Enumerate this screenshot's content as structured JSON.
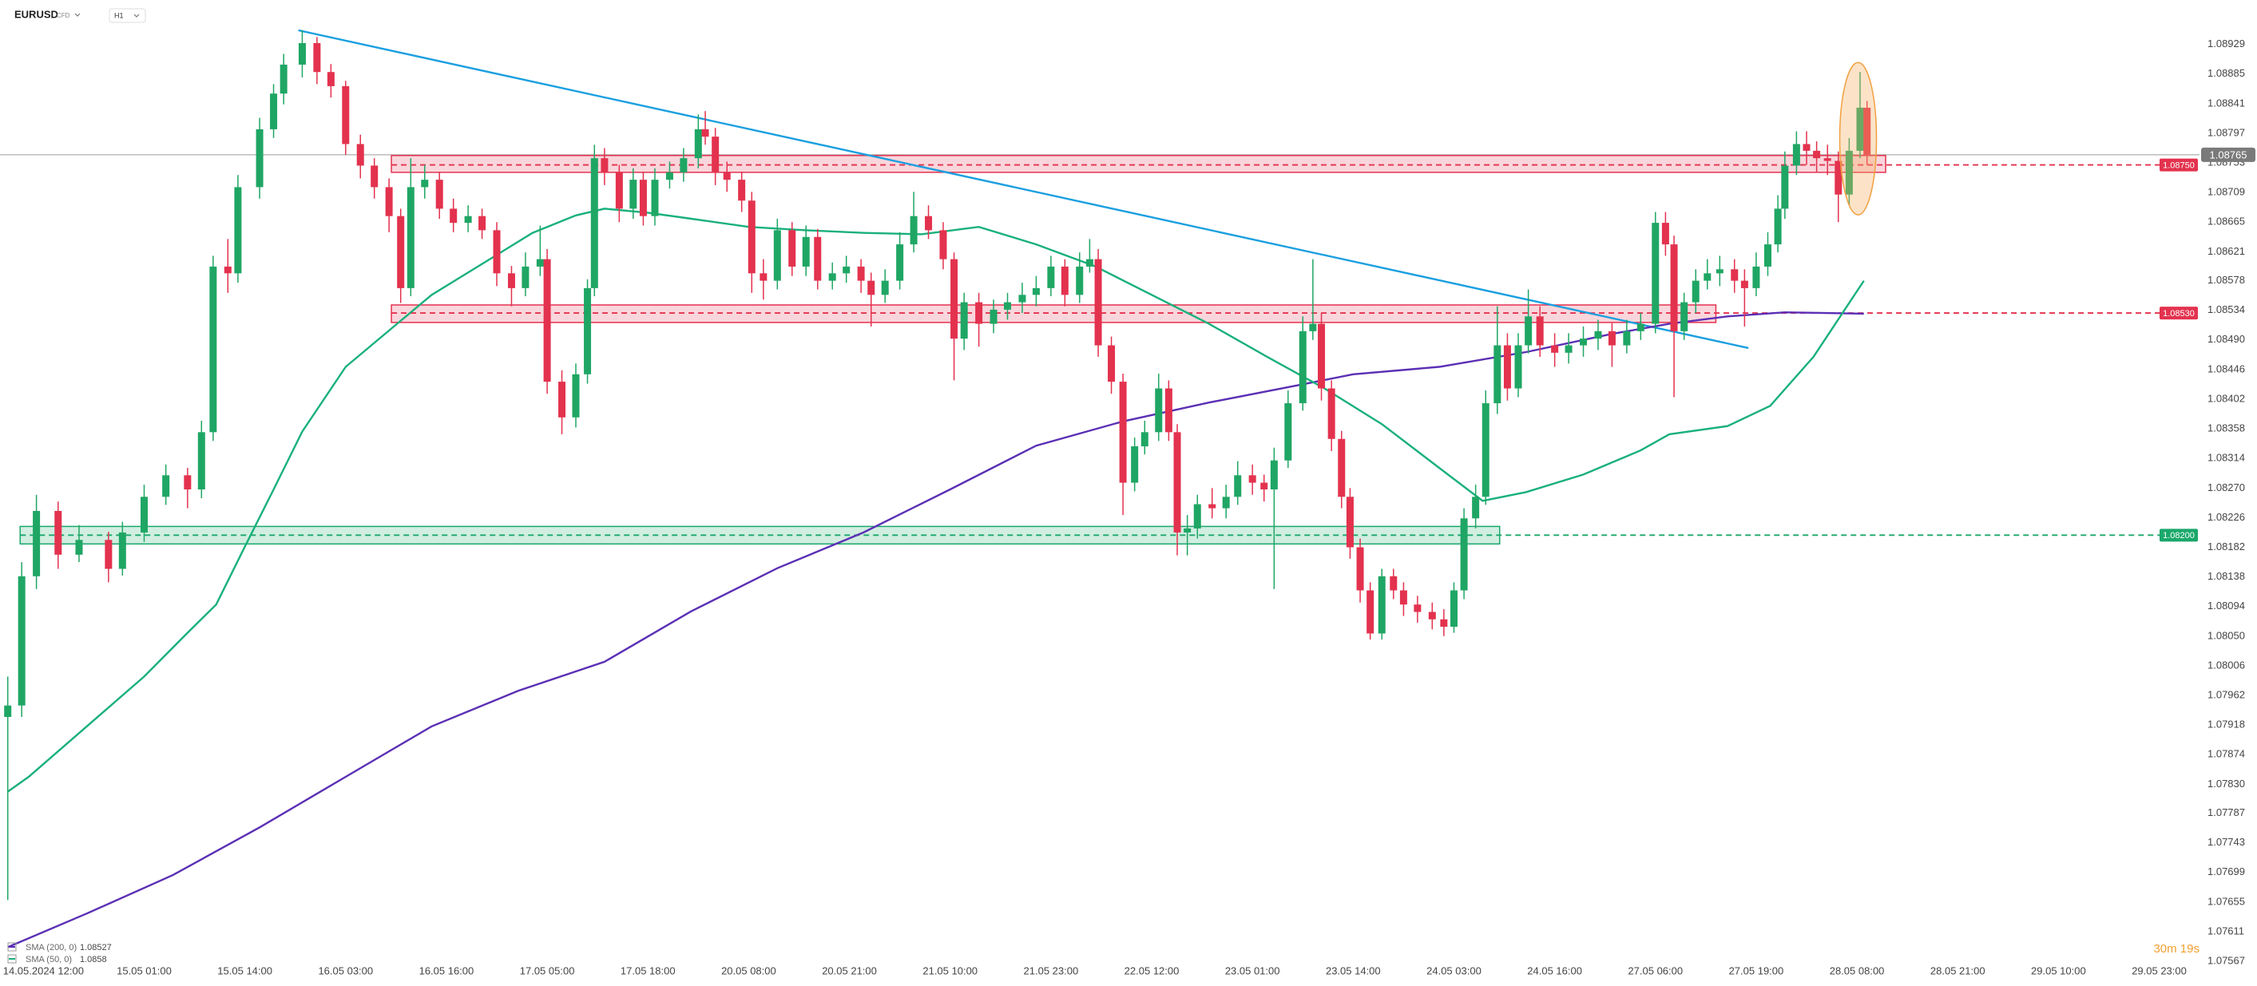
{
  "chart_data": {
    "type": "candlestick",
    "symbol": "EURUSD",
    "instrument_type": "CFD",
    "timeframe": "H1",
    "countdown": "30m 19s",
    "up_color": "#1fa664",
    "down_color": "#e3324e",
    "xlim": [
      -5.6,
      278.2
    ],
    "ylim": [
      1.07541,
      1.08995
    ],
    "yticks": [
      1.08929,
      1.08885,
      1.08841,
      1.08797,
      1.08753,
      1.08709,
      1.08665,
      1.08621,
      1.08578,
      1.08534,
      {
        "value": 1.0849,
        "label": "1.08490"
      },
      1.08446,
      1.08402,
      1.08358,
      1.08314,
      {
        "value": 1.0827,
        "label": "1.08270"
      },
      1.08226,
      1.08182,
      1.08138,
      1.08094,
      {
        "value": 1.0805,
        "label": "1.08050"
      },
      1.08006,
      1.07962,
      1.07918,
      1.07874,
      {
        "value": 1.0783,
        "label": "1.07830"
      },
      1.07787,
      1.07743,
      1.07699,
      1.07655,
      1.07611,
      1.07567
    ],
    "xticks": [
      {
        "value": 0,
        "label": "14.05.2024 12:00"
      },
      {
        "value": 13,
        "label": "15.05 01:00"
      },
      {
        "value": 26,
        "label": "15.05 14:00"
      },
      {
        "value": 39,
        "label": "16.05 03:00"
      },
      {
        "value": 52,
        "label": "16.05 16:00"
      },
      {
        "value": 65,
        "label": "17.05 05:00"
      },
      {
        "value": 78,
        "label": "17.05 18:00"
      },
      {
        "value": 91,
        "label": "20.05 08:00"
      },
      {
        "value": 104,
        "label": "20.05 21:00"
      },
      {
        "value": 117,
        "label": "21.05 10:00"
      },
      {
        "value": 130,
        "label": "21.05 23:00"
      },
      {
        "value": 143,
        "label": "22.05 12:00"
      },
      {
        "value": 156,
        "label": "23.05 01:00"
      },
      {
        "value": 169,
        "label": "23.05 14:00"
      },
      {
        "value": 182,
        "label": "24.05 03:00"
      },
      {
        "value": 195,
        "label": "24.05 16:00"
      },
      {
        "value": 208,
        "label": "27.05 06:00"
      },
      {
        "value": 221,
        "label": "27.05 19:00"
      },
      {
        "value": 234,
        "label": "28.05 08:00"
      },
      {
        "value": 247,
        "label": "28.05 21:00"
      },
      {
        "value": 260,
        "label": "29.05 10:00"
      },
      {
        "value": 273,
        "label": "29.05 23:00"
      }
    ],
    "x": [
      -4.6,
      -2.8,
      -0.9,
      1.9,
      4.6,
      8.4,
      10.2,
      13.0,
      15.8,
      18.6,
      20.4,
      21.9,
      23.8,
      25.1,
      27.9,
      29.7,
      31.0,
      33.4,
      35.3,
      37.1,
      39.0,
      40.9,
      42.7,
      44.6,
      46.1,
      47.4,
      49.2,
      51.1,
      52.9,
      54.8,
      56.6,
      58.5,
      60.4,
      62.2,
      64.1,
      65.0,
      66.9,
      68.7,
      70.2,
      71.1,
      72.4,
      74.3,
      76.1,
      77.4,
      78.9,
      80.8,
      82.6,
      84.5,
      85.4,
      86.7,
      88.2,
      90.1,
      91.4,
      92.9,
      94.7,
      96.6,
      98.4,
      99.9,
      101.8,
      103.6,
      105.5,
      106.8,
      108.6,
      110.5,
      112.3,
      114.2,
      116.1,
      117.5,
      118.8,
      120.7,
      122.6,
      124.4,
      126.3,
      128.1,
      130.0,
      131.8,
      133.7,
      135.0,
      136.1,
      137.8,
      139.3,
      140.8,
      142.1,
      143.9,
      145.2,
      146.3,
      147.6,
      148.9,
      150.8,
      152.6,
      154.1,
      156.0,
      157.5,
      158.8,
      160.6,
      162.5,
      163.8,
      164.9,
      166.2,
      167.5,
      168.6,
      169.9,
      171.2,
      172.7,
      174.2,
      175.5,
      177.3,
      179.2,
      180.7,
      182.0,
      183.3,
      184.8,
      186.1,
      187.6,
      188.9,
      190.3,
      191.6,
      193.1,
      195.0,
      196.8,
      198.7,
      200.6,
      202.4,
      204.3,
      206.1,
      208.0,
      209.3,
      210.4,
      211.7,
      213.2,
      214.7,
      216.3,
      218.2,
      219.5,
      221.0,
      222.5,
      223.8,
      224.7,
      226.2,
      227.5,
      228.8,
      230.2,
      231.6,
      233.0,
      234.4,
      235.3
    ],
    "open": [
      1.0793,
      1.07947,
      1.08139,
      1.08236,
      1.08171,
      1.08193,
      1.0815,
      1.08204,
      1.08257,
      1.08289,
      1.08268,
      1.08353,
      1.08599,
      1.08589,
      1.08717,
      1.08803,
      1.08856,
      1.08899,
      1.08931,
      1.08888,
      1.08867,
      1.08781,
      1.08749,
      1.08717,
      1.08674,
      1.08567,
      1.08717,
      1.08728,
      1.08685,
      1.08664,
      1.08674,
      1.08653,
      1.08589,
      1.08567,
      1.08599,
      1.0861,
      1.08428,
      1.08375,
      1.08439,
      1.08567,
      1.0876,
      1.08739,
      1.08685,
      1.08728,
      1.08674,
      1.08728,
      1.08739,
      1.0876,
      1.08803,
      1.08792,
      1.08739,
      1.08728,
      1.08697,
      1.08589,
      1.08578,
      1.08653,
      1.08599,
      1.08643,
      1.08578,
      1.08589,
      1.08599,
      1.08578,
      1.08557,
      1.08578,
      1.08632,
      1.08674,
      1.08653,
      1.0861,
      1.08492,
      1.08546,
      1.08514,
      1.08535,
      1.08546,
      1.08557,
      1.08567,
      1.08599,
      1.08557,
      1.08599,
      1.0861,
      1.08482,
      1.08428,
      1.08278,
      1.08332,
      1.08353,
      1.08418,
      1.08353,
      1.08204,
      1.0821,
      1.08246,
      1.0824,
      1.08257,
      1.08289,
      1.08278,
      1.08268,
      1.08311,
      1.08396,
      1.08503,
      1.08514,
      1.08418,
      1.08343,
      1.08257,
      1.08182,
      1.08118,
      1.08054,
      1.08139,
      1.08118,
      1.08097,
      1.08086,
      1.08075,
      1.08064,
      1.08118,
      1.08225,
      1.08257,
      1.08396,
      1.08482,
      1.08418,
      1.08482,
      1.08525,
      1.08482,
      1.08471,
      1.08482,
      1.08492,
      1.08503,
      1.08482,
      1.08503,
      1.08514,
      1.08664,
      1.08632,
      1.08503,
      1.08546,
      1.08578,
      1.08589,
      1.08595,
      1.08578,
      1.08567,
      1.08599,
      1.08632,
      1.08685,
      1.08749,
      1.08781,
      1.08771,
      1.0876,
      1.08756,
      1.08706,
      1.08771,
      1.08835
    ],
    "high": [
      1.0799,
      1.0816,
      1.0826,
      1.0825,
      1.08215,
      1.08205,
      1.0822,
      1.08275,
      1.08305,
      1.083,
      1.0837,
      1.08615,
      1.0864,
      1.08735,
      1.0882,
      1.0887,
      1.08915,
      1.0895,
      1.0894,
      1.089,
      1.08875,
      1.08795,
      1.0876,
      1.0873,
      1.08685,
      1.0876,
      1.0875,
      1.0874,
      1.087,
      1.0869,
      1.08685,
      1.08665,
      1.086,
      1.0862,
      1.0866,
      1.08625,
      1.08445,
      1.08455,
      1.0858,
      1.0878,
      1.08775,
      1.0875,
      1.08745,
      1.0874,
      1.08745,
      1.08755,
      1.08775,
      1.08825,
      1.0883,
      1.08805,
      1.08755,
      1.0874,
      1.0871,
      1.0861,
      1.0867,
      1.08665,
      1.0866,
      1.08655,
      1.08605,
      1.08615,
      1.0861,
      1.0859,
      1.08595,
      1.0865,
      1.0871,
      1.0869,
      1.08665,
      1.0862,
      1.0856,
      1.0856,
      1.0855,
      1.0856,
      1.08575,
      1.08585,
      1.08615,
      1.0861,
      1.0862,
      1.0864,
      1.08625,
      1.08495,
      1.0844,
      1.08345,
      1.0837,
      1.0844,
      1.0843,
      1.08365,
      1.0823,
      1.0826,
      1.0827,
      1.08275,
      1.0831,
      1.08305,
      1.0829,
      1.0833,
      1.08415,
      1.08525,
      1.0861,
      1.0853,
      1.0843,
      1.08355,
      1.0827,
      1.08195,
      1.0813,
      1.0815,
      1.0815,
      1.0813,
      1.0811,
      1.081,
      1.0809,
      1.0813,
      1.0824,
      1.08275,
      1.08415,
      1.0854,
      1.085,
      1.085,
      1.08565,
      1.0854,
      1.085,
      1.085,
      1.0851,
      1.0852,
      1.08515,
      1.0852,
      1.0853,
      1.0868,
      1.0868,
      1.08645,
      1.0856,
      1.08595,
      1.0861,
      1.08615,
      1.0861,
      1.08595,
      1.0862,
      1.0865,
      1.08705,
      1.0877,
      1.088,
      1.088,
      1.08785,
      1.0878,
      1.0877,
      1.0879,
      1.08888,
      1.08845
    ],
    "low": [
      1.07658,
      1.0793,
      1.0812,
      1.0815,
      1.0816,
      1.0813,
      1.0814,
      1.0819,
      1.08245,
      1.0824,
      1.08255,
      1.0834,
      1.0856,
      1.08575,
      1.087,
      1.0879,
      1.0884,
      1.0888,
      1.0887,
      1.0885,
      1.08765,
      1.0873,
      1.087,
      1.0865,
      1.08545,
      1.08555,
      1.087,
      1.0867,
      1.0865,
      1.0865,
      1.0864,
      1.0857,
      1.0854,
      1.08555,
      1.08585,
      1.0841,
      1.0835,
      1.0836,
      1.08425,
      1.08555,
      1.0872,
      1.08665,
      1.0867,
      1.0866,
      1.0866,
      1.08715,
      1.08725,
      1.08745,
      1.0878,
      1.0872,
      1.0871,
      1.0868,
      1.0856,
      1.0855,
      1.08565,
      1.08585,
      1.08585,
      1.08565,
      1.08565,
      1.08575,
      1.0856,
      1.0851,
      1.08545,
      1.08565,
      1.0862,
      1.0864,
      1.08595,
      1.0843,
      1.08475,
      1.0848,
      1.085,
      1.0852,
      1.0853,
      1.0854,
      1.08555,
      1.0854,
      1.08545,
      1.0859,
      1.08465,
      1.0841,
      1.0823,
      1.08265,
      1.0832,
      1.0834,
      1.0834,
      1.0817,
      1.0817,
      1.08195,
      1.08225,
      1.08225,
      1.08245,
      1.0826,
      1.0825,
      1.0812,
      1.083,
      1.08385,
      1.0849,
      1.084,
      1.08325,
      1.0824,
      1.08165,
      1.081,
      1.08045,
      1.08045,
      1.08105,
      1.0808,
      1.0807,
      1.0806,
      1.0805,
      1.08055,
      1.08105,
      1.0821,
      1.08245,
      1.0838,
      1.084,
      1.08405,
      1.0847,
      1.08465,
      1.0845,
      1.08455,
      1.08465,
      1.08475,
      1.0845,
      1.0847,
      1.0849,
      1.085,
      1.08615,
      1.08405,
      1.0849,
      1.0853,
      1.08565,
      1.0857,
      1.0856,
      1.0851,
      1.08555,
      1.08585,
      1.0862,
      1.0867,
      1.08735,
      1.0875,
      1.0874,
      1.08735,
      1.08665,
      1.0869,
      1.0876,
      1.0875
    ],
    "close": [
      1.07947,
      1.08139,
      1.08236,
      1.08171,
      1.08193,
      1.0815,
      1.08204,
      1.08257,
      1.08289,
      1.08268,
      1.08353,
      1.08599,
      1.08589,
      1.08717,
      1.08803,
      1.08856,
      1.08899,
      1.08931,
      1.08888,
      1.08867,
      1.08781,
      1.08749,
      1.08717,
      1.08674,
      1.08567,
      1.08717,
      1.08728,
      1.08685,
      1.08664,
      1.08674,
      1.08653,
      1.08589,
      1.08567,
      1.08599,
      1.0861,
      1.08428,
      1.08375,
      1.08439,
      1.08567,
      1.0876,
      1.08739,
      1.08685,
      1.08728,
      1.08674,
      1.08728,
      1.08739,
      1.0876,
      1.08803,
      1.08792,
      1.08739,
      1.08728,
      1.08697,
      1.08589,
      1.08578,
      1.08653,
      1.08599,
      1.08643,
      1.08578,
      1.08589,
      1.08599,
      1.08578,
      1.08557,
      1.08578,
      1.08632,
      1.08674,
      1.08653,
      1.0861,
      1.08492,
      1.08546,
      1.08514,
      1.08535,
      1.08546,
      1.08557,
      1.08567,
      1.08599,
      1.08557,
      1.08599,
      1.0861,
      1.08482,
      1.08428,
      1.08278,
      1.08332,
      1.08353,
      1.08418,
      1.08353,
      1.08204,
      1.0821,
      1.08246,
      1.0824,
      1.08257,
      1.08289,
      1.08278,
      1.08268,
      1.08311,
      1.08396,
      1.08503,
      1.08514,
      1.08418,
      1.08343,
      1.08257,
      1.08182,
      1.08118,
      1.08054,
      1.08139,
      1.08118,
      1.08097,
      1.08086,
      1.08075,
      1.08064,
      1.08118,
      1.08225,
      1.08257,
      1.08396,
      1.08482,
      1.08418,
      1.08482,
      1.08525,
      1.08482,
      1.08471,
      1.08482,
      1.08492,
      1.08503,
      1.08482,
      1.08503,
      1.08514,
      1.08664,
      1.08632,
      1.08503,
      1.08546,
      1.08578,
      1.08589,
      1.08595,
      1.08578,
      1.08567,
      1.08599,
      1.08632,
      1.08685,
      1.08749,
      1.08781,
      1.08771,
      1.0876,
      1.08756,
      1.08706,
      1.08771,
      1.08835,
      1.08765
    ],
    "last_price": 1.08765,
    "last_price_color": "#7a7a7a",
    "indicators": [
      {
        "name": "SMA (200, 0)",
        "last": 1.08527,
        "color": "#5b2fb5",
        "x": [
          -4.6,
          5.6,
          16.7,
          27.9,
          39.0,
          50.1,
          61.3,
          72.4,
          83.6,
          94.7,
          105.8,
          117.0,
          128.1,
          139.3,
          150.4,
          161.6,
          169.0,
          180.1,
          191.3,
          202.4,
          209.8,
          217.3,
          224.7,
          234.9
        ],
        "values": [
          1.07588,
          1.07638,
          1.07695,
          1.07766,
          1.07841,
          1.07916,
          1.07969,
          1.08012,
          1.08087,
          1.08151,
          1.08204,
          1.08268,
          1.08333,
          1.08369,
          1.08397,
          1.08422,
          1.08439,
          1.0845,
          1.08472,
          1.08499,
          1.08514,
          1.08525,
          1.08531,
          1.08529
        ]
      },
      {
        "name": "SMA (50, 0)",
        "last": 1.0858,
        "color": "#19b07b",
        "x": [
          -4.6,
          -1.9,
          5.6,
          13.0,
          18.6,
          22.3,
          26.0,
          29.7,
          33.4,
          39.0,
          44.6,
          50.1,
          57.6,
          63.1,
          68.7,
          72.4,
          78.0,
          83.6,
          91.0,
          98.4,
          105.9,
          113.3,
          120.7,
          128.1,
          135.6,
          143.0,
          150.4,
          157.9,
          165.3,
          172.7,
          180.1,
          185.7,
          191.3,
          198.7,
          206.1,
          209.8,
          217.3,
          222.8,
          228.4,
          234.9
        ],
        "values": [
          1.07819,
          1.07841,
          1.07916,
          1.0799,
          1.08055,
          1.08097,
          1.08183,
          1.08268,
          1.08354,
          1.0845,
          1.08504,
          1.08557,
          1.0861,
          1.08649,
          1.08675,
          1.08685,
          1.08679,
          1.0867,
          1.08658,
          1.08653,
          1.08649,
          1.08647,
          1.08658,
          1.08632,
          1.086,
          1.08557,
          1.08514,
          1.08465,
          1.08418,
          1.08365,
          1.083,
          1.08251,
          1.08264,
          1.0829,
          1.08326,
          1.0835,
          1.08362,
          1.08392,
          1.08465,
          1.08578
        ]
      }
    ],
    "trendline": {
      "color": "#1a9fe0",
      "x": [
        32.9,
        220.0
      ],
      "values": [
        1.0895,
        1.08478
      ]
    },
    "levels": [
      {
        "value": 1.0875,
        "label": "1.08750",
        "color": "#e3324e",
        "zone": [
          1.08739,
          1.08764
        ],
        "x_range": [
          44.9,
          237.7
        ]
      },
      {
        "value": 1.0853,
        "label": "1.08530",
        "color": "#e3324e",
        "zone": [
          1.08516,
          1.08542
        ],
        "x_range": [
          44.9,
          215.8
        ]
      },
      {
        "value": 1.082,
        "label": "1.08200",
        "color": "#1aa86b",
        "zone": [
          1.08187,
          1.08213
        ],
        "x_range": [
          -3.0,
          187.9
        ]
      }
    ]
  }
}
